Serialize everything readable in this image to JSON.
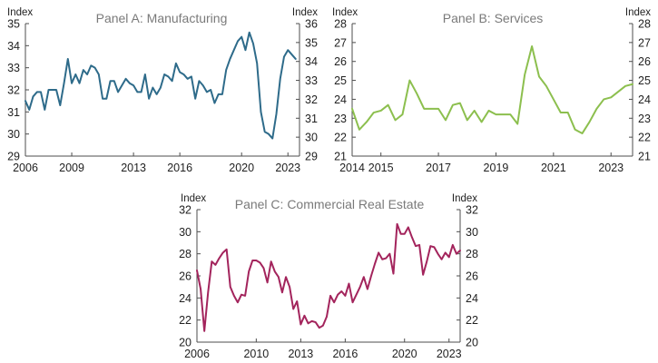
{
  "chart_data": [
    {
      "type": "line",
      "title": "Panel A: Manufacturing",
      "ylabel_left": "Index",
      "ylabel_right": "Index",
      "color": "#2e6b8a",
      "xlim": [
        2006,
        2023.75
      ],
      "ylim_left": [
        29,
        35
      ],
      "ylim_right": [
        29,
        36
      ],
      "yticks_left": [
        "29",
        "30",
        "31",
        "32",
        "33",
        "34",
        "35"
      ],
      "yticks_right": [
        "29",
        "30",
        "31",
        "32",
        "33",
        "34",
        "35",
        "36"
      ],
      "xticks": [
        2006,
        2009,
        2013,
        2016,
        2020,
        2023
      ],
      "grid": false,
      "legend": "none",
      "series": [
        {
          "x": [
            2006.0,
            2006.25,
            2006.5,
            2006.75,
            2007.0,
            2007.25,
            2007.5,
            2007.75,
            2008.0,
            2008.25,
            2008.5,
            2008.75,
            2009.0,
            2009.25,
            2009.5,
            2009.75,
            2010.0,
            2010.25,
            2010.5,
            2010.75,
            2011.0,
            2011.25,
            2011.5,
            2011.75,
            2012.0,
            2012.25,
            2012.5,
            2012.75,
            2013.0,
            2013.25,
            2013.5,
            2013.75,
            2014.0,
            2014.25,
            2014.5,
            2014.75,
            2015.0,
            2015.25,
            2015.5,
            2015.75,
            2016.0,
            2016.25,
            2016.5,
            2016.75,
            2017.0,
            2017.25,
            2017.5,
            2017.75,
            2018.0,
            2018.25,
            2018.5,
            2018.75,
            2019.0,
            2019.25,
            2019.5,
            2019.75,
            2020.0,
            2020.25,
            2020.5,
            2020.75,
            2021.0,
            2021.25,
            2021.5,
            2021.75,
            2022.0,
            2022.25,
            2022.5,
            2022.75,
            2023.0,
            2023.25,
            2023.5
          ],
          "y": [
            31.5,
            31.1,
            31.7,
            31.9,
            31.9,
            31.1,
            32.0,
            32.0,
            32.0,
            31.3,
            32.3,
            33.4,
            32.3,
            32.7,
            32.3,
            32.9,
            32.7,
            33.1,
            33.0,
            32.7,
            31.6,
            31.6,
            32.4,
            32.4,
            31.9,
            32.2,
            32.5,
            32.3,
            32.2,
            31.9,
            31.9,
            32.7,
            31.6,
            32.1,
            31.8,
            32.1,
            32.7,
            32.6,
            32.4,
            33.2,
            32.8,
            32.7,
            32.5,
            32.6,
            31.6,
            32.4,
            32.2,
            31.9,
            32.0,
            31.4,
            31.8,
            31.8,
            32.9,
            33.4,
            33.8,
            34.2,
            34.4,
            33.8,
            34.6,
            34.1,
            33.2,
            31.0,
            30.1,
            30.0,
            29.8,
            30.9,
            32.5,
            33.5,
            33.8,
            33.6,
            33.4
          ]
        }
      ]
    },
    {
      "type": "line",
      "title": "Panel B: Services",
      "ylabel_left": "Index",
      "ylabel_right": "Index",
      "color": "#8cbf4e",
      "xlim": [
        2014,
        2023.75
      ],
      "ylim_left": [
        21,
        28
      ],
      "ylim_right": [
        21,
        28
      ],
      "yticks_left": [
        "21",
        "22",
        "23",
        "24",
        "25",
        "26",
        "27",
        "28"
      ],
      "yticks_right": [
        "21",
        "22",
        "23",
        "24",
        "25",
        "26",
        "27",
        "28"
      ],
      "xticks": [
        2014,
        2015,
        2017,
        2019,
        2021,
        2023
      ],
      "grid": false,
      "legend": "none",
      "series": [
        {
          "x": [
            2014.0,
            2014.25,
            2014.5,
            2014.75,
            2015.0,
            2015.25,
            2015.5,
            2015.75,
            2016.0,
            2016.25,
            2016.5,
            2016.75,
            2017.0,
            2017.25,
            2017.5,
            2017.75,
            2018.0,
            2018.25,
            2018.5,
            2018.75,
            2019.0,
            2019.25,
            2019.5,
            2019.75,
            2020.0,
            2020.25,
            2020.5,
            2020.75,
            2021.0,
            2021.25,
            2021.5,
            2021.75,
            2022.0,
            2022.25,
            2022.5,
            2022.75,
            2023.0,
            2023.25,
            2023.5,
            2023.75
          ],
          "y": [
            23.5,
            22.4,
            22.8,
            23.3,
            23.4,
            23.7,
            22.9,
            23.2,
            25.0,
            24.3,
            23.5,
            23.5,
            23.5,
            22.9,
            23.7,
            23.8,
            22.9,
            23.4,
            22.8,
            23.4,
            23.2,
            23.2,
            23.2,
            22.7,
            25.3,
            26.8,
            25.2,
            24.7,
            24.0,
            23.3,
            23.3,
            22.4,
            22.2,
            22.8,
            23.5,
            24.0,
            24.1,
            24.4,
            24.7,
            24.8
          ]
        }
      ]
    },
    {
      "type": "line",
      "title": "Panel C: Commercial Real Estate",
      "ylabel_left": "Index",
      "ylabel_right": "Index",
      "color": "#a3245c",
      "xlim": [
        2006,
        2023.75
      ],
      "ylim_left": [
        20,
        32
      ],
      "ylim_right": [
        20,
        32
      ],
      "yticks_left": [
        "20",
        "22",
        "24",
        "26",
        "28",
        "30",
        "32"
      ],
      "yticks_right": [
        "20",
        "22",
        "24",
        "26",
        "28",
        "30",
        "32"
      ],
      "xticks": [
        2006,
        2010,
        2013,
        2016,
        2020,
        2023
      ],
      "grid": false,
      "legend": "none",
      "series": [
        {
          "x": [
            2006.0,
            2006.25,
            2006.5,
            2006.75,
            2007.0,
            2007.25,
            2007.5,
            2007.75,
            2008.0,
            2008.25,
            2008.5,
            2008.75,
            2009.0,
            2009.25,
            2009.5,
            2009.75,
            2010.0,
            2010.25,
            2010.5,
            2010.75,
            2011.0,
            2011.25,
            2011.5,
            2011.75,
            2012.0,
            2012.25,
            2012.5,
            2012.75,
            2013.0,
            2013.25,
            2013.5,
            2013.75,
            2014.0,
            2014.25,
            2014.5,
            2014.75,
            2015.0,
            2015.25,
            2015.5,
            2015.75,
            2016.0,
            2016.25,
            2016.5,
            2016.75,
            2017.0,
            2017.25,
            2017.5,
            2017.75,
            2018.0,
            2018.25,
            2018.5,
            2018.75,
            2019.0,
            2019.25,
            2019.5,
            2019.75,
            2020.0,
            2020.25,
            2020.5,
            2020.75,
            2021.0,
            2021.25,
            2021.5,
            2021.75,
            2022.0,
            2022.25,
            2022.5,
            2022.75,
            2023.0,
            2023.25,
            2023.5,
            2023.75
          ],
          "y": [
            26.5,
            24.8,
            21.0,
            24.5,
            27.3,
            27.0,
            27.6,
            28.1,
            28.4,
            25.0,
            24.2,
            23.6,
            24.3,
            24.2,
            26.4,
            27.4,
            27.4,
            27.2,
            26.7,
            25.4,
            27.3,
            26.4,
            25.9,
            24.5,
            25.9,
            25.0,
            23.0,
            23.7,
            21.6,
            22.4,
            21.7,
            21.9,
            21.8,
            21.3,
            21.5,
            22.3,
            24.2,
            23.6,
            24.3,
            24.6,
            24.2,
            25.3,
            23.6,
            24.3,
            25.0,
            25.9,
            24.8,
            26.0,
            27.1,
            28.1,
            27.5,
            27.6,
            28.0,
            26.2,
            30.7,
            29.8,
            29.8,
            30.4,
            29.5,
            28.7,
            28.8,
            26.1,
            27.3,
            28.7,
            28.6,
            28.0,
            27.5,
            28.1,
            27.7,
            28.8,
            28.0,
            28.3
          ]
        }
      ]
    }
  ]
}
